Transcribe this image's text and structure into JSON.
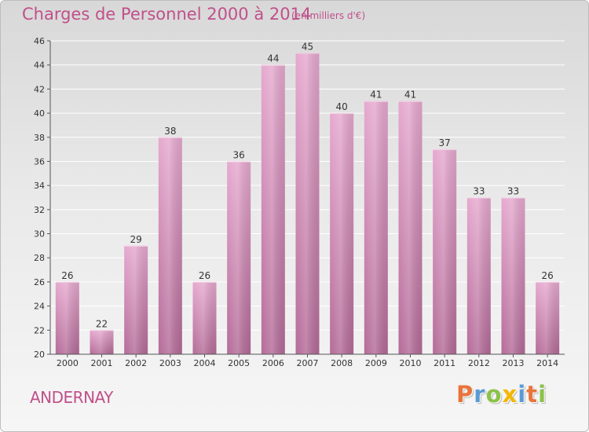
{
  "title": "Charges de Personnel 2000 à 2014",
  "unit": "(en milliers d'€)",
  "city": "ANDERNAY",
  "logo": [
    "P",
    "r",
    "o",
    "x",
    "i",
    "t",
    "i"
  ],
  "logo_colors": [
    "#e8743b",
    "#5b9bd5",
    "#8ac24a",
    "#f2b705",
    "#5b9bd5",
    "#e8743b",
    "#8ac24a"
  ],
  "colors": {
    "text": "#c0508a",
    "bar_top": "#e6a9cf",
    "bar_bottom": "#b46b98",
    "grid": "#ffffff",
    "axis": "#555555"
  },
  "chart_data": {
    "type": "bar",
    "categories": [
      "2000",
      "2001",
      "2002",
      "2003",
      "2004",
      "2005",
      "2006",
      "2007",
      "2008",
      "2009",
      "2010",
      "2011",
      "2012",
      "2013",
      "2014"
    ],
    "values": [
      26,
      22,
      29,
      38,
      26,
      36,
      44,
      45,
      40,
      41,
      41,
      37,
      33,
      33,
      26
    ],
    "ylim": [
      20,
      46
    ],
    "yticks": [
      20,
      22,
      24,
      26,
      28,
      30,
      32,
      34,
      36,
      38,
      40,
      42,
      44,
      46
    ],
    "grid": true,
    "title": "Charges de Personnel 2000 à 2014",
    "xlabel": "",
    "ylabel": ""
  }
}
